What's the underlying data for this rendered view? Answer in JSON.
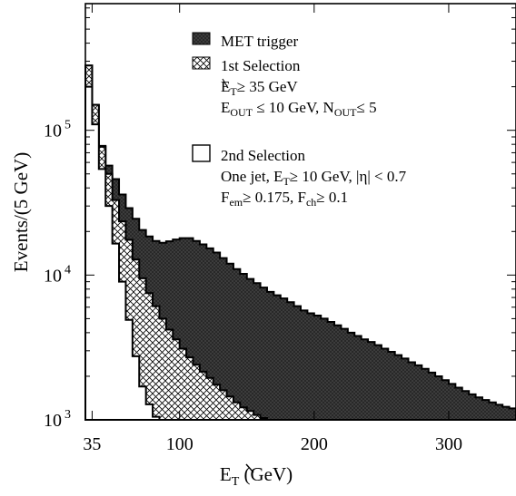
{
  "chart_data": {
    "type": "area",
    "x_scale": "linear",
    "y_scale": "log",
    "xlim": [
      30,
      350
    ],
    "ylim": [
      1000,
      750000
    ],
    "xlabel_main": "E",
    "xlabel_sub": "T",
    "xlabel_unit": " (GeV)",
    "ylabel": "Events/(5 GeV)",
    "x_ticks": [
      {
        "value": 35,
        "label": "35"
      },
      {
        "value": 100,
        "label": "100"
      },
      {
        "value": 200,
        "label": "200"
      },
      {
        "value": 300,
        "label": "300"
      }
    ],
    "y_ticks": [
      {
        "value": 1000,
        "base": "10",
        "exp": "3"
      },
      {
        "value": 10000,
        "base": "10",
        "exp": "4"
      },
      {
        "value": 100000,
        "base": "10",
        "exp": "5"
      }
    ],
    "series": [
      {
        "name": "MET trigger",
        "fill": "dark",
        "x": [
          30,
          35,
          40,
          45,
          50,
          55,
          60,
          65,
          70,
          75,
          80,
          85,
          90,
          95,
          100,
          105,
          110,
          115,
          120,
          125,
          130,
          135,
          140,
          145,
          150,
          155,
          160,
          165,
          170,
          175,
          180,
          185,
          190,
          195,
          200,
          205,
          210,
          215,
          220,
          225,
          230,
          235,
          240,
          245,
          250,
          255,
          260,
          265,
          270,
          275,
          280,
          285,
          290,
          295,
          300,
          305,
          310,
          315,
          320,
          325,
          330,
          335,
          340,
          345
        ],
        "values": [
          280000,
          150000,
          78000,
          57000,
          46000,
          36000,
          29000,
          24500,
          20500,
          18500,
          17200,
          16700,
          17100,
          17600,
          18000,
          18000,
          17200,
          16300,
          15300,
          14300,
          13100,
          12000,
          11000,
          10200,
          9400,
          8800,
          8200,
          7650,
          7250,
          6900,
          6500,
          6100,
          5700,
          5450,
          5250,
          5000,
          4750,
          4500,
          4250,
          4000,
          3800,
          3600,
          3450,
          3280,
          3100,
          2950,
          2800,
          2650,
          2500,
          2380,
          2250,
          2120,
          2000,
          1880,
          1770,
          1670,
          1580,
          1500,
          1430,
          1370,
          1320,
          1270,
          1230,
          1200
        ]
      },
      {
        "name": "1st Selection",
        "fill": "crosshatch",
        "x": [
          30,
          35,
          40,
          45,
          50,
          55,
          60,
          65,
          70,
          75,
          80,
          85,
          90,
          95,
          100,
          105,
          110,
          115,
          120,
          125,
          130,
          135,
          140,
          145,
          150,
          155,
          160,
          165,
          170
        ],
        "values": [
          280000,
          150000,
          77000,
          50000,
          33000,
          23500,
          17500,
          12800,
          9500,
          7500,
          6100,
          5000,
          4200,
          3600,
          3100,
          2700,
          2400,
          2150,
          1950,
          1750,
          1600,
          1450,
          1320,
          1220,
          1150,
          1080,
          1030,
          1000,
          1000
        ]
      },
      {
        "name": "2nd Selection",
        "fill": "none",
        "x": [
          30,
          35,
          40,
          45,
          50,
          55,
          60,
          65,
          70,
          75,
          80,
          85
        ],
        "values": [
          200000,
          110000,
          54000,
          30000,
          16500,
          9000,
          4900,
          2750,
          1700,
          1280,
          1050,
          1000
        ]
      }
    ],
    "legend": [
      {
        "label": "MET trigger",
        "fill": "dark"
      },
      {
        "label": "1st Selection",
        "fill": "crosshatch",
        "cuts": [
          "E_T ≥ 35 GeV",
          "E_OUT ≤ 10 GeV, N_OUT ≤ 5"
        ]
      },
      {
        "label": "2nd Selection",
        "fill": "none",
        "cuts": [
          "One jet, E_T ≥ 10 GeV, |η| < 0.7",
          "F_em ≥ 0.175, F_ch ≥ 0.1"
        ]
      }
    ],
    "legend_position": "top-right",
    "grid": false
  },
  "legend_text": {
    "met": "MET trigger",
    "sel1": "1st Selection",
    "sel1_l1_a": "E",
    "sel1_l1_sub": "T",
    "sel1_l1_b": "≥ 35 GeV",
    "sel1_l2_a": "E",
    "sel1_l2_sub1": "OUT",
    "sel1_l2_b": " ≤ 10 GeV, N",
    "sel1_l2_sub2": "OUT",
    "sel1_l2_c": "≤ 5",
    "sel2": "2nd Selection",
    "sel2_l1_a": "One jet, E",
    "sel2_l1_sub": "T",
    "sel2_l1_b": "≥ 10 GeV,  |η| < 0.7",
    "sel2_l2_a": "F",
    "sel2_l2_sub1": "em",
    "sel2_l2_b": "≥ 0.175, F",
    "sel2_l2_sub2": "ch",
    "sel2_l2_c": "≥ 0.1"
  }
}
